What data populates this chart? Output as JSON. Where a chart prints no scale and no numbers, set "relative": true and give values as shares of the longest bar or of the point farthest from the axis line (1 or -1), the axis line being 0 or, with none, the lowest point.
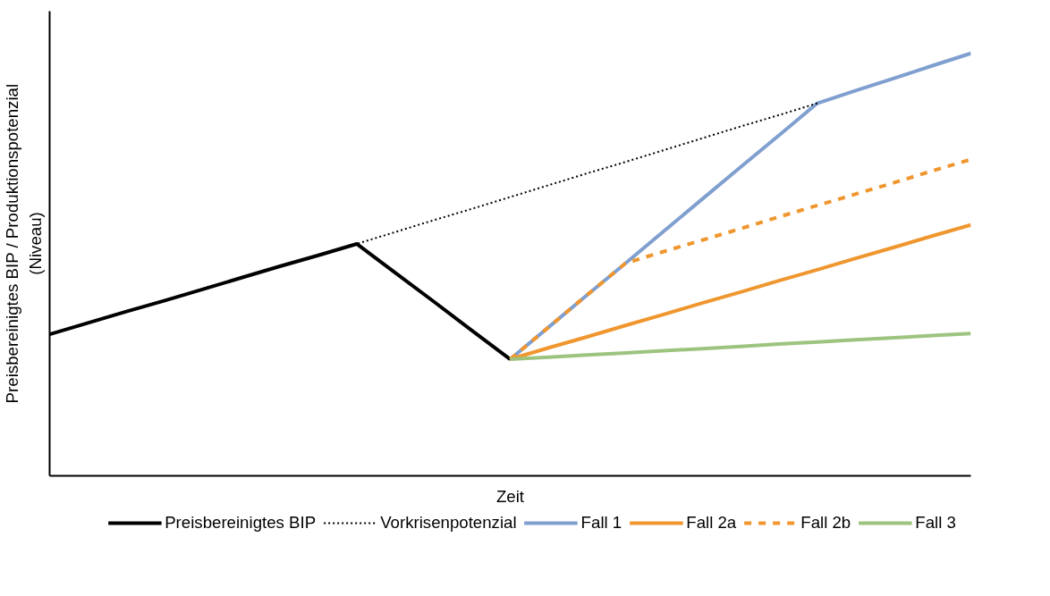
{
  "chart_data": {
    "type": "line",
    "xlabel": "Zeit",
    "ylabel": "Preisbereinigtes BIP / Produktionspotenzial\n(Niveau)",
    "relative": true,
    "grid": false,
    "legend": "bottom",
    "categories": [
      null,
      null,
      null,
      null,
      null,
      null,
      null,
      null,
      null,
      null,
      null,
      null,
      null,
      null,
      null,
      null,
      null,
      null,
      null,
      null,
      null,
      null,
      null,
      null,
      null
    ],
    "series": [
      {
        "name": "Preisbereinigtes BIP",
        "color": "#000000",
        "line_style": "solid",
        "values": [
          0.335,
          0.362,
          0.389,
          0.415,
          0.442,
          0.469,
          0.496,
          0.522,
          0.549,
          0.481,
          0.413,
          0.344,
          0.276,
          null,
          null,
          null,
          null,
          null,
          null,
          null,
          null,
          null,
          null,
          null,
          null
        ]
      },
      {
        "name": "Vorkrisenpotenzial",
        "color": "#000000",
        "line_style": "dotted",
        "values": [
          null,
          null,
          null,
          null,
          null,
          null,
          null,
          null,
          0.549,
          0.577,
          0.605,
          0.632,
          0.66,
          0.688,
          0.716,
          0.743,
          0.771,
          0.799,
          0.827,
          0.854,
          0.882,
          null,
          null,
          null,
          null
        ]
      },
      {
        "name": "Fall 1",
        "color": "#7f9fcf",
        "line_style": "solid",
        "values": [
          null,
          null,
          null,
          null,
          null,
          null,
          null,
          null,
          null,
          null,
          null,
          null,
          0.276,
          0.352,
          0.428,
          0.503,
          0.579,
          0.655,
          0.731,
          0.806,
          0.882,
          0.912,
          0.941,
          0.971,
          1.0
        ]
      },
      {
        "name": "Fall 2a",
        "color": "#f0962e",
        "line_style": "solid",
        "values": [
          null,
          null,
          null,
          null,
          null,
          null,
          null,
          null,
          null,
          null,
          null,
          null,
          0.276,
          0.303,
          0.329,
          0.356,
          0.382,
          0.409,
          0.435,
          0.462,
          0.488,
          0.515,
          0.541,
          0.568,
          0.594
        ]
      },
      {
        "name": "Fall 2b",
        "color": "#f0962e",
        "line_style": "dashed",
        "values": [
          null,
          null,
          null,
          null,
          null,
          null,
          null,
          null,
          null,
          null,
          null,
          null,
          0.276,
          0.352,
          0.428,
          0.503,
          0.531,
          0.558,
          0.585,
          0.613,
          0.64,
          0.667,
          0.694,
          0.722,
          0.749
        ]
      },
      {
        "name": "Fall 3",
        "color": "#9dc47f",
        "line_style": "solid",
        "values": [
          null,
          null,
          null,
          null,
          null,
          null,
          null,
          null,
          null,
          null,
          null,
          null,
          0.276,
          0.281,
          0.286,
          0.291,
          0.296,
          0.301,
          0.306,
          0.312,
          0.317,
          0.322,
          0.327,
          0.332,
          0.337
        ]
      }
    ]
  }
}
